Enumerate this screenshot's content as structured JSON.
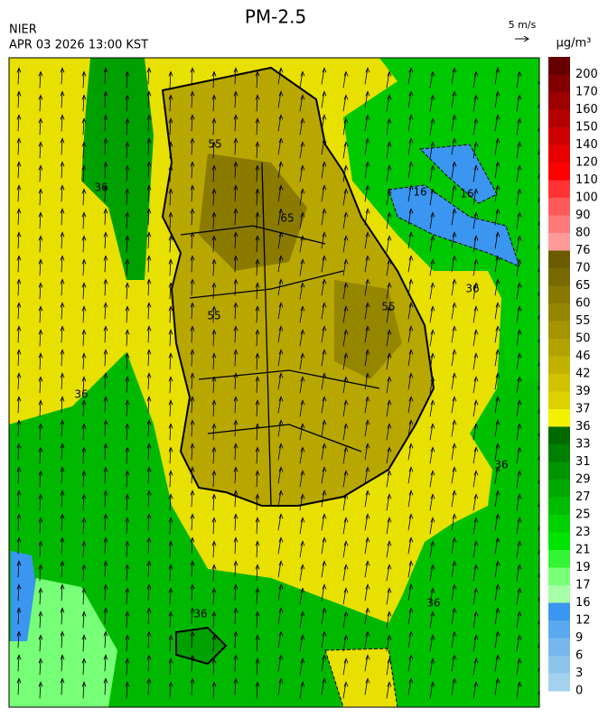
{
  "header": {
    "title": "PM-2.5",
    "agency": "NIER",
    "timestamp": "APR 03 2026 13:00 KST",
    "wind_scale": "5 m/s",
    "unit": "μg/m³"
  },
  "colorbar": {
    "levels": [
      {
        "label": "200",
        "color": "#660000"
      },
      {
        "label": "170",
        "color": "#820000"
      },
      {
        "label": "160",
        "color": "#9c0000"
      },
      {
        "label": "150",
        "color": "#b40000"
      },
      {
        "label": "140",
        "color": "#cc0000"
      },
      {
        "label": "120",
        "color": "#e60000"
      },
      {
        "label": "110",
        "color": "#ff0000"
      },
      {
        "label": "100",
        "color": "#ff3333"
      },
      {
        "label": "90",
        "color": "#ff5a5a"
      },
      {
        "label": "80",
        "color": "#ff7a7a"
      },
      {
        "label": "76",
        "color": "#ff9a9a"
      },
      {
        "label": "70",
        "color": "#6b5c00"
      },
      {
        "label": "65",
        "color": "#786a00"
      },
      {
        "label": "60",
        "color": "#877800"
      },
      {
        "label": "55",
        "color": "#958600"
      },
      {
        "label": "50",
        "color": "#a39400"
      },
      {
        "label": "46",
        "color": "#b3a300"
      },
      {
        "label": "42",
        "color": "#c2b200"
      },
      {
        "label": "39",
        "color": "#d1c300"
      },
      {
        "label": "37",
        "color": "#ddd200"
      },
      {
        "label": "36",
        "color": "#f2f200"
      },
      {
        "label": "33",
        "color": "#006a00"
      },
      {
        "label": "31",
        "color": "#007f00"
      },
      {
        "label": "29",
        "color": "#009400"
      },
      {
        "label": "27",
        "color": "#00a800"
      },
      {
        "label": "25",
        "color": "#00bc00"
      },
      {
        "label": "23",
        "color": "#00d000"
      },
      {
        "label": "21",
        "color": "#00e400"
      },
      {
        "label": "19",
        "color": "#33f533"
      },
      {
        "label": "17",
        "color": "#77ff77"
      },
      {
        "label": "16",
        "color": "#a6ffa6"
      },
      {
        "label": "12",
        "color": "#3a96f0"
      },
      {
        "label": "9",
        "color": "#5aa8ee"
      },
      {
        "label": "6",
        "color": "#76b8ee"
      },
      {
        "label": "3",
        "color": "#8cc4ec"
      },
      {
        "label": "0",
        "color": "#a4d2ee"
      }
    ]
  },
  "map": {
    "contour_labels": [
      "36",
      "36",
      "36",
      "36",
      "36",
      "36",
      "16",
      "16",
      "55",
      "55",
      "55",
      "65"
    ]
  }
}
